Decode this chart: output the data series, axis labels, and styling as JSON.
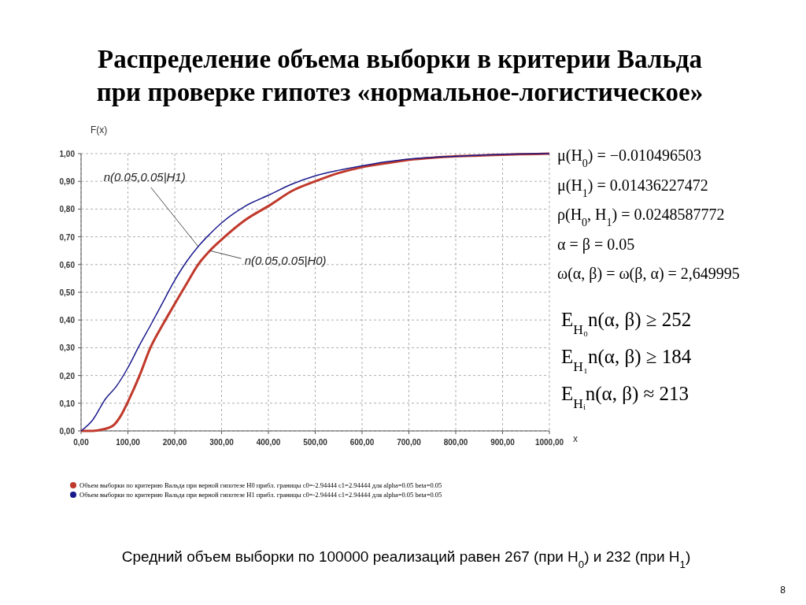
{
  "chart_data": {
    "type": "line",
    "title": "Распределение объема выборки в критерии Вальда при проверке гипотез «нормальное-логистическое»",
    "xlabel": "x",
    "ylabel": "F(x)",
    "xlim": [
      0,
      1000
    ],
    "ylim": [
      0,
      1
    ],
    "xticks": [
      {
        "value": 0,
        "label": "0,00"
      },
      {
        "value": 100,
        "label": "100,00"
      },
      {
        "value": 200,
        "label": "200,00"
      },
      {
        "value": 300,
        "label": "300,00"
      },
      {
        "value": 400,
        "label": "400,00"
      },
      {
        "value": 500,
        "label": "500,00"
      },
      {
        "value": 600,
        "label": "600,00"
      },
      {
        "value": 700,
        "label": "700,00"
      },
      {
        "value": 800,
        "label": "800,00"
      },
      {
        "value": 900,
        "label": "900,00"
      },
      {
        "value": 1000,
        "label": "1000,00"
      }
    ],
    "yticks": [
      {
        "value": 0,
        "label": "0,00"
      },
      {
        "value": 0.1,
        "label": "0,10"
      },
      {
        "value": 0.2,
        "label": "0,20"
      },
      {
        "value": 0.3,
        "label": "0,30"
      },
      {
        "value": 0.4,
        "label": "0,40"
      },
      {
        "value": 0.5,
        "label": "0,50"
      },
      {
        "value": 0.6,
        "label": "0,60"
      },
      {
        "value": 0.7,
        "label": "0,70"
      },
      {
        "value": 0.8,
        "label": "0,80"
      },
      {
        "value": 0.9,
        "label": "0,90"
      },
      {
        "value": 1,
        "label": "1,00"
      }
    ],
    "grid": true,
    "legend": "bottom",
    "marker": "none",
    "line_style": "solid",
    "series": [
      {
        "name": "Объем выборки по критерию Вальда при верной гипотезе H0  прибл. границы  c0=-2.94444 c1=2.94444 для  alpha=0.05 beta=0.05",
        "color": "#c0392b",
        "x": [
          0,
          25,
          45,
          69,
          85,
          100,
          125,
          148,
          175,
          199,
          225,
          250,
          275,
          300,
          350,
          404,
          450,
          500,
          550,
          597,
          650,
          699,
          750,
          798,
          850,
          898,
          950,
          1000
        ],
        "values": [
          0,
          0,
          0.005,
          0.02,
          0.055,
          0.105,
          0.2,
          0.3,
          0.385,
          0.455,
          0.53,
          0.6,
          0.65,
          0.69,
          0.76,
          0.815,
          0.865,
          0.9,
          0.93,
          0.95,
          0.965,
          0.977,
          0.985,
          0.99,
          0.993,
          0.996,
          0.998,
          1
        ]
      },
      {
        "name": "Объем выборки по критерию Вальда при верной гипотезе H1  прибл. границы  c0=-2.94444 c1=2.94444 для  alpha=0.05 beta=0.05",
        "color": "#1a1a8c",
        "x": [
          0,
          25,
          52,
          75,
          100,
          125,
          148,
          175,
          199,
          225,
          250,
          275,
          300,
          350,
          404,
          450,
          500,
          550,
          597,
          650,
          699,
          750,
          798,
          850,
          898,
          950,
          1000
        ],
        "values": [
          0,
          0.04,
          0.115,
          0.16,
          0.228,
          0.31,
          0.38,
          0.465,
          0.54,
          0.61,
          0.665,
          0.71,
          0.75,
          0.81,
          0.853,
          0.89,
          0.92,
          0.94,
          0.955,
          0.97,
          0.98,
          0.986,
          0.99,
          0.994,
          0.997,
          0.999,
          1
        ]
      }
    ],
    "annotations": [
      {
        "text": "n(0.05,0.05|H1)",
        "x": 250,
        "y": 0.665
      },
      {
        "text": "n(0.05,0.05|H0)",
        "x": 275,
        "y": 0.65
      },
      "μ(H$_{0}$) = −0.010496503",
      "μ(H$_{1}$) = 0.01436227472",
      "ρ(H$_{0}$, H$_{1}$) = 0.0248587772",
      "α = β = 0.05",
      "ω(α, β) = ω(β, α) = 2,649995",
      "E$_{H₀}$n(α, β) ≥ 252",
      "E$_{H₁}$n(α, β) ≥ 184",
      "E$_{Hᵢ}$n(α, β) ≈ 213",
      "Средний объем выборки по 100000 реализаций равен 267 (при H$_{0}$) и 232 (при H$_{1}$)",
      "8"
    ]
  }
}
